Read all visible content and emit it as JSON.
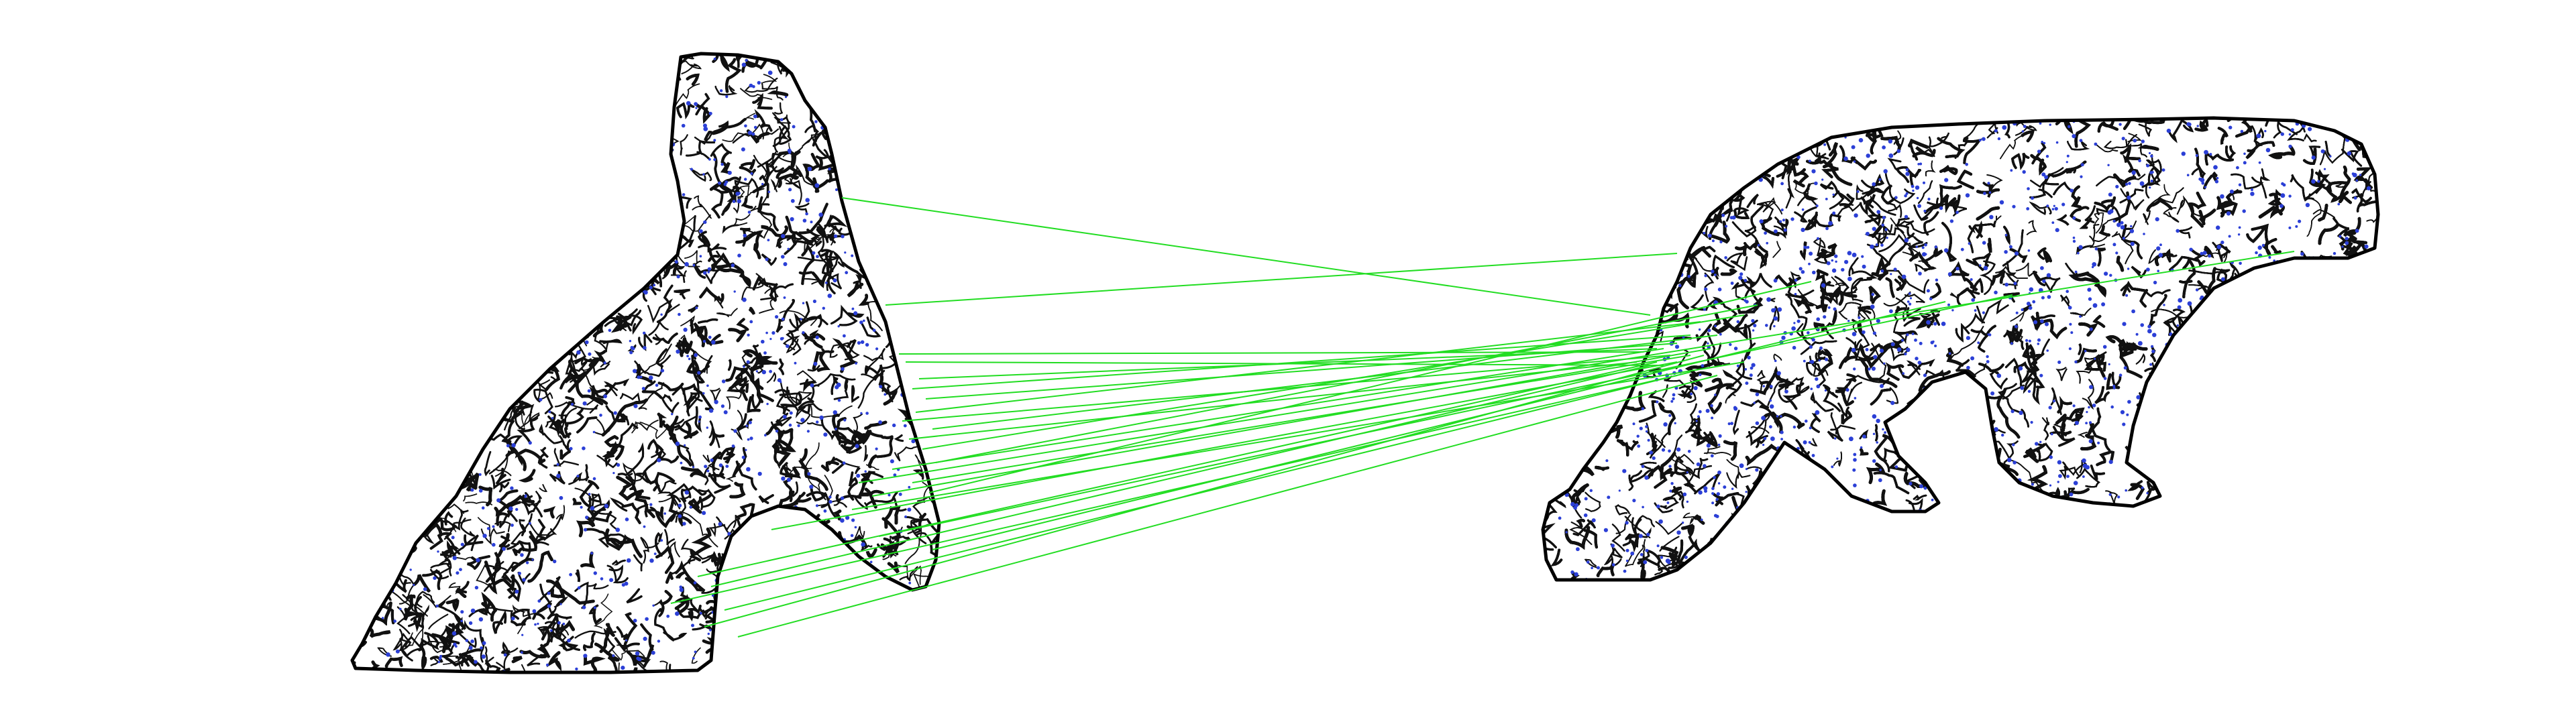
{
  "figure": {
    "kind": "feature-correspondence-visualization",
    "background_color": "#ffffff",
    "outline_color": "#000000",
    "texture_color": "#111111",
    "keypoint_color": "#2b3fd6",
    "match_color": "#22dd22",
    "panels": [
      {
        "id": "left",
        "subject": "animal-silhouette-cropped"
      },
      {
        "id": "right",
        "subject": "bear-silhouette"
      }
    ],
    "visible_match_count": 28
  }
}
